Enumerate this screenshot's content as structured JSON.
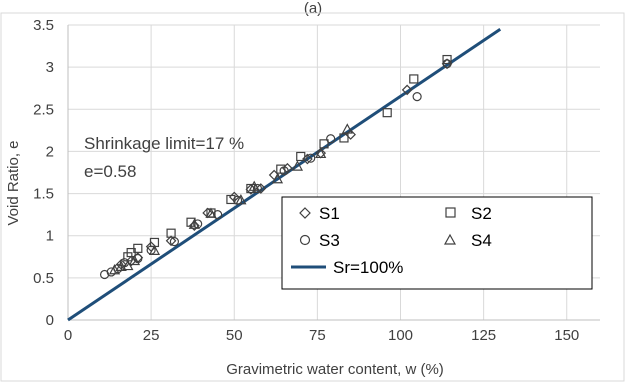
{
  "chart_data": {
    "type": "scatter",
    "header_text": "(a)",
    "xlabel": "Gravimetric water content, w (%)",
    "ylabel": "Void Ratio, e",
    "xlim": [
      0,
      160
    ],
    "ylim": [
      0,
      3.5
    ],
    "x_ticks": [
      "0",
      "25",
      "50",
      "75",
      "100",
      "125",
      "150"
    ],
    "y_ticks": [
      "0",
      "0.5",
      "1",
      "1.5",
      "2",
      "2.5",
      "3",
      "3.5"
    ],
    "grid": true,
    "annotations": [
      "Shrinkage limit=17 %",
      "e=0.58"
    ],
    "legend_position": "bottom-right",
    "colors": {
      "line": "#1f4e79",
      "marker": "#404040",
      "grid": "#d9d9d9",
      "frame": "#bfbfbf"
    },
    "series": [
      {
        "name": "S1",
        "marker": "diamond",
        "points": [
          [
            16,
            0.66
          ],
          [
            19,
            0.7
          ],
          [
            21,
            0.74
          ],
          [
            25,
            0.87
          ],
          [
            31,
            0.94
          ],
          [
            38,
            1.12
          ],
          [
            42,
            1.27
          ],
          [
            50,
            1.46
          ],
          [
            55,
            1.55
          ],
          [
            58,
            1.56
          ],
          [
            62,
            1.72
          ],
          [
            66,
            1.8
          ],
          [
            72,
            1.91
          ],
          [
            76,
            1.98
          ],
          [
            85,
            2.2
          ],
          [
            102,
            2.73
          ],
          [
            114,
            3.04
          ]
        ]
      },
      {
        "name": "S2",
        "marker": "square",
        "points": [
          [
            18,
            0.75
          ],
          [
            19,
            0.8
          ],
          [
            21,
            0.85
          ],
          [
            26,
            0.92
          ],
          [
            31,
            1.03
          ],
          [
            37,
            1.16
          ],
          [
            43,
            1.27
          ],
          [
            49,
            1.43
          ],
          [
            55,
            1.56
          ],
          [
            64,
            1.79
          ],
          [
            70,
            1.94
          ],
          [
            77,
            2.09
          ],
          [
            83,
            2.16
          ],
          [
            96,
            2.46
          ],
          [
            104,
            2.86
          ],
          [
            114,
            3.09
          ]
        ]
      },
      {
        "name": "S3",
        "marker": "circle",
        "points": [
          [
            11,
            0.54
          ],
          [
            13,
            0.57
          ],
          [
            15,
            0.61
          ],
          [
            17,
            0.68
          ],
          [
            21,
            0.73
          ],
          [
            25,
            0.83
          ],
          [
            32,
            0.93
          ],
          [
            39,
            1.14
          ],
          [
            45,
            1.25
          ],
          [
            51,
            1.42
          ],
          [
            57,
            1.56
          ],
          [
            65,
            1.77
          ],
          [
            73,
            1.92
          ],
          [
            79,
            2.15
          ],
          [
            105,
            2.65
          ],
          [
            114,
            3.04
          ]
        ]
      },
      {
        "name": "S4",
        "marker": "triangle",
        "points": [
          [
            14,
            0.59
          ],
          [
            16,
            0.63
          ],
          [
            18,
            0.64
          ],
          [
            20,
            0.7
          ],
          [
            26,
            0.82
          ],
          [
            38,
            1.13
          ],
          [
            43,
            1.26
          ],
          [
            52,
            1.42
          ],
          [
            56,
            1.58
          ],
          [
            63,
            1.67
          ],
          [
            69,
            1.82
          ],
          [
            76,
            1.97
          ],
          [
            84,
            2.26
          ]
        ]
      },
      {
        "name": "Sr=100%",
        "type": "line",
        "points": [
          [
            0,
            0
          ],
          [
            130,
            3.45
          ]
        ]
      }
    ]
  }
}
